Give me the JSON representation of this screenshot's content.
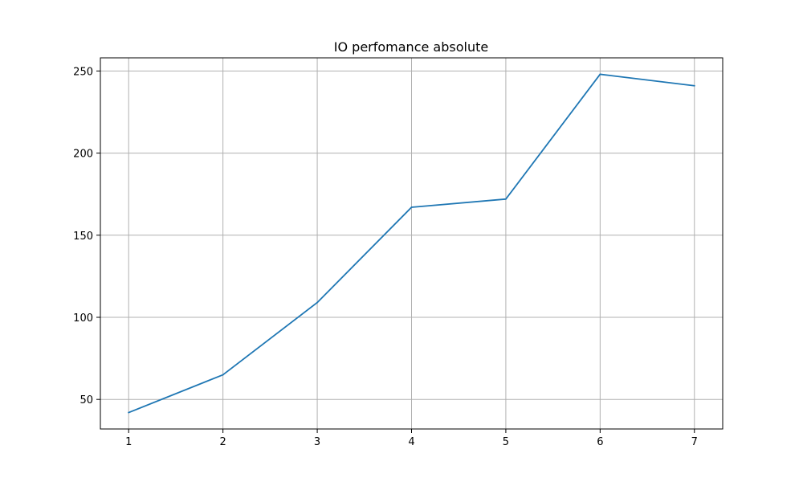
{
  "chart_data": {
    "type": "line",
    "title": "IO perfomance absolute",
    "xlabel": "",
    "ylabel": "",
    "x": [
      1,
      2,
      3,
      4,
      5,
      6,
      7
    ],
    "series": [
      {
        "values": [
          42,
          65,
          109,
          167,
          172,
          248,
          241
        ],
        "color": "#1f77b4"
      }
    ],
    "xlim": [
      0.7,
      7.3
    ],
    "ylim": [
      32,
      258
    ],
    "xticks": [
      1,
      2,
      3,
      4,
      5,
      6,
      7
    ],
    "yticks": [
      50,
      100,
      150,
      200,
      250
    ],
    "grid": true,
    "legend": "none"
  }
}
